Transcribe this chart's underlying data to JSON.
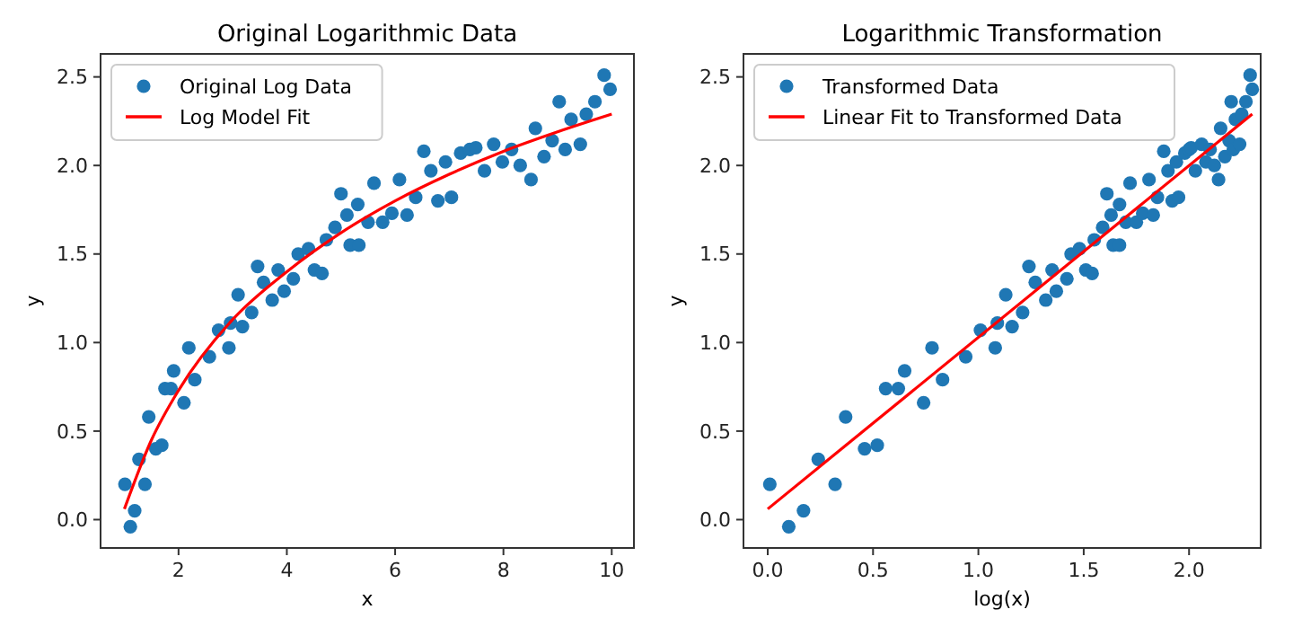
{
  "chart_data": [
    {
      "type": "scatter",
      "title": "Original Logarithmic Data",
      "xlabel": "x",
      "ylabel": "y",
      "xlim": [
        0.56,
        10.41
      ],
      "ylim": [
        -0.16,
        2.63
      ],
      "xticks": [
        2,
        4,
        6,
        8,
        10
      ],
      "yticks": [
        {
          "value": 0,
          "label": "0.0"
        },
        {
          "value": 0.5,
          "label": "0.5"
        },
        {
          "value": 1,
          "label": "1.0"
        },
        {
          "value": 1.5,
          "label": "1.5"
        },
        {
          "value": 2,
          "label": "2.0"
        },
        {
          "value": 2.5,
          "label": "2.5"
        }
      ],
      "legend": "top left",
      "grid": false,
      "series": [
        {
          "marker": "circle",
          "name": "Original Log Data",
          "color": "#1f77b4",
          "x": [
            1.01,
            1.11,
            1.19,
            1.27,
            1.38,
            1.45,
            1.58,
            1.69,
            1.75,
            1.91,
            1.86,
            2.1,
            2.3,
            2.19,
            2.57,
            2.74,
            2.93,
            2.96,
            3.1,
            3.18,
            3.35,
            3.46,
            3.57,
            3.73,
            3.84,
            3.95,
            4.12,
            4.21,
            4.4,
            4.51,
            4.65,
            4.73,
            4.89,
            5.0,
            5.11,
            5.17,
            5.33,
            5.31,
            5.5,
            5.61,
            5.77,
            5.94,
            6.08,
            6.22,
            6.38,
            6.53,
            6.66,
            6.79,
            6.93,
            7.04,
            7.21,
            7.38,
            7.49,
            7.65,
            7.82,
            7.98,
            8.15,
            8.31,
            8.51,
            8.59,
            8.75,
            8.9,
            9.03,
            9.14,
            9.25,
            9.42,
            9.53,
            9.69,
            9.86,
            9.97
          ],
          "values": [
            0.2,
            -0.04,
            0.05,
            0.34,
            0.2,
            0.58,
            0.4,
            0.42,
            0.74,
            0.84,
            0.74,
            0.66,
            0.79,
            0.97,
            0.92,
            1.07,
            0.97,
            1.11,
            1.27,
            1.09,
            1.17,
            1.43,
            1.34,
            1.24,
            1.41,
            1.29,
            1.36,
            1.5,
            1.53,
            1.41,
            1.39,
            1.58,
            1.65,
            1.84,
            1.72,
            1.55,
            1.55,
            1.78,
            1.68,
            1.9,
            1.68,
            1.73,
            1.92,
            1.72,
            1.82,
            2.08,
            1.97,
            1.8,
            2.02,
            1.82,
            2.07,
            2.09,
            2.1,
            1.97,
            2.12,
            2.02,
            2.09,
            2.0,
            1.92,
            2.21,
            2.05,
            2.14,
            2.36,
            2.09,
            2.26,
            2.12,
            2.29,
            2.36,
            2.51,
            2.43
          ]
        },
        {
          "type": "line",
          "name": "Log Model Fit",
          "color": "#ff0000",
          "x": [
            1,
            1.5,
            2,
            3,
            4,
            5,
            6,
            7,
            8,
            9,
            10
          ],
          "values": [
            0.06,
            0.45,
            0.73,
            1.13,
            1.4,
            1.62,
            1.8,
            1.95,
            2.08,
            2.19,
            2.29
          ]
        }
      ]
    },
    {
      "type": "scatter",
      "title": "Logarithmic Transformation",
      "xlabel": "log(x)",
      "ylabel": "y",
      "xlim": [
        -0.115,
        2.34
      ],
      "ylim": [
        -0.16,
        2.63
      ],
      "xticks": [
        {
          "value": 0,
          "label": "0.0"
        },
        {
          "value": 0.5,
          "label": "0.5"
        },
        {
          "value": 1,
          "label": "1.0"
        },
        {
          "value": 1.5,
          "label": "1.5"
        },
        {
          "value": 2,
          "label": "2.0"
        }
      ],
      "yticks": [
        {
          "value": 0,
          "label": "0.0"
        },
        {
          "value": 0.5,
          "label": "0.5"
        },
        {
          "value": 1,
          "label": "1.0"
        },
        {
          "value": 1.5,
          "label": "1.5"
        },
        {
          "value": 2,
          "label": "2.0"
        },
        {
          "value": 2.5,
          "label": "2.5"
        }
      ],
      "legend": "top left",
      "grid": false,
      "series": [
        {
          "marker": "circle",
          "name": "Transformed Data",
          "color": "#1f77b4",
          "x": [
            0.01,
            0.1,
            0.17,
            0.24,
            0.32,
            0.37,
            0.46,
            0.52,
            0.56,
            0.65,
            0.62,
            0.74,
            0.83,
            0.78,
            0.94,
            1.01,
            1.08,
            1.09,
            1.13,
            1.16,
            1.21,
            1.24,
            1.27,
            1.32,
            1.35,
            1.37,
            1.42,
            1.44,
            1.48,
            1.51,
            1.54,
            1.55,
            1.59,
            1.61,
            1.63,
            1.64,
            1.67,
            1.67,
            1.7,
            1.72,
            1.75,
            1.78,
            1.81,
            1.83,
            1.85,
            1.88,
            1.9,
            1.92,
            1.94,
            1.95,
            1.98,
            2.0,
            2.01,
            2.03,
            2.06,
            2.08,
            2.1,
            2.12,
            2.14,
            2.15,
            2.17,
            2.19,
            2.2,
            2.21,
            2.22,
            2.24,
            2.25,
            2.27,
            2.29,
            2.3
          ],
          "values": [
            0.2,
            -0.04,
            0.05,
            0.34,
            0.2,
            0.58,
            0.4,
            0.42,
            0.74,
            0.84,
            0.74,
            0.66,
            0.79,
            0.97,
            0.92,
            1.07,
            0.97,
            1.11,
            1.27,
            1.09,
            1.17,
            1.43,
            1.34,
            1.24,
            1.41,
            1.29,
            1.36,
            1.5,
            1.53,
            1.41,
            1.39,
            1.58,
            1.65,
            1.84,
            1.72,
            1.55,
            1.55,
            1.78,
            1.68,
            1.9,
            1.68,
            1.73,
            1.92,
            1.72,
            1.82,
            2.08,
            1.97,
            1.8,
            2.02,
            1.82,
            2.07,
            2.09,
            2.1,
            1.97,
            2.12,
            2.02,
            2.09,
            2.0,
            1.92,
            2.21,
            2.05,
            2.14,
            2.36,
            2.09,
            2.26,
            2.12,
            2.29,
            2.36,
            2.51,
            2.43
          ]
        },
        {
          "type": "line",
          "name": "Linear Fit to Transformed Data",
          "color": "#ff0000",
          "x": [
            0,
            2.3
          ],
          "values": [
            0.06,
            2.29
          ]
        }
      ]
    }
  ]
}
